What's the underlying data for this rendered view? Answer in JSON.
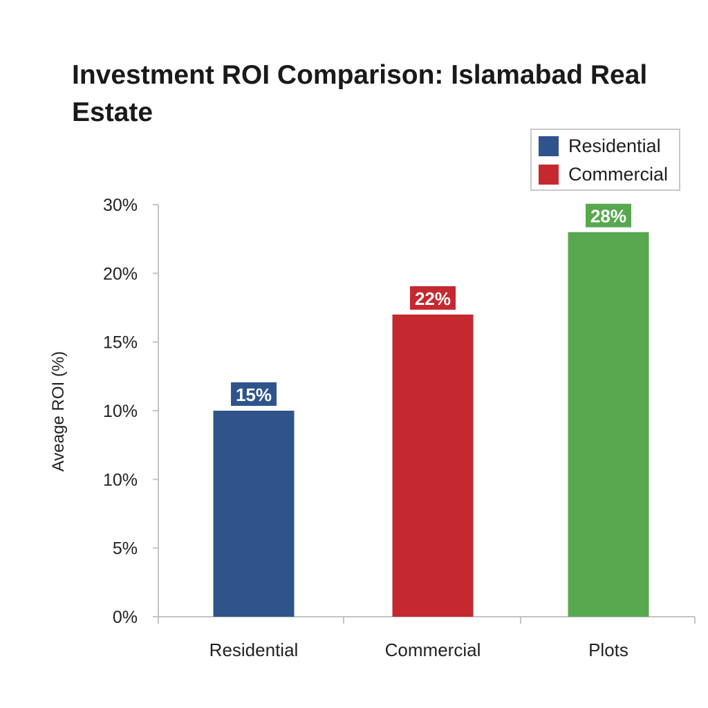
{
  "chart_data": {
    "type": "bar",
    "title": "Investment ROI Comparison: Islamabad Real Estate",
    "xlabel": "",
    "ylabel": "Aveage ROI (%)",
    "categories": [
      "Residential",
      "Commercial",
      "Plots"
    ],
    "values": [
      15,
      22,
      28
    ],
    "data_labels": [
      "15%",
      "22%",
      "28%"
    ],
    "colors": [
      "#2f548c",
      "#c62830",
      "#58a84f"
    ],
    "ytick_labels": [
      "0%",
      "5%",
      "10%",
      "10%",
      "15%",
      "20%",
      "30%"
    ],
    "ylim": [
      0,
      30
    ],
    "grid": false,
    "legend": {
      "placement": "top-right",
      "entries": [
        {
          "label": "Residential",
          "color": "#2f548c"
        },
        {
          "label": "Commercial",
          "color": "#c62830"
        }
      ]
    }
  }
}
